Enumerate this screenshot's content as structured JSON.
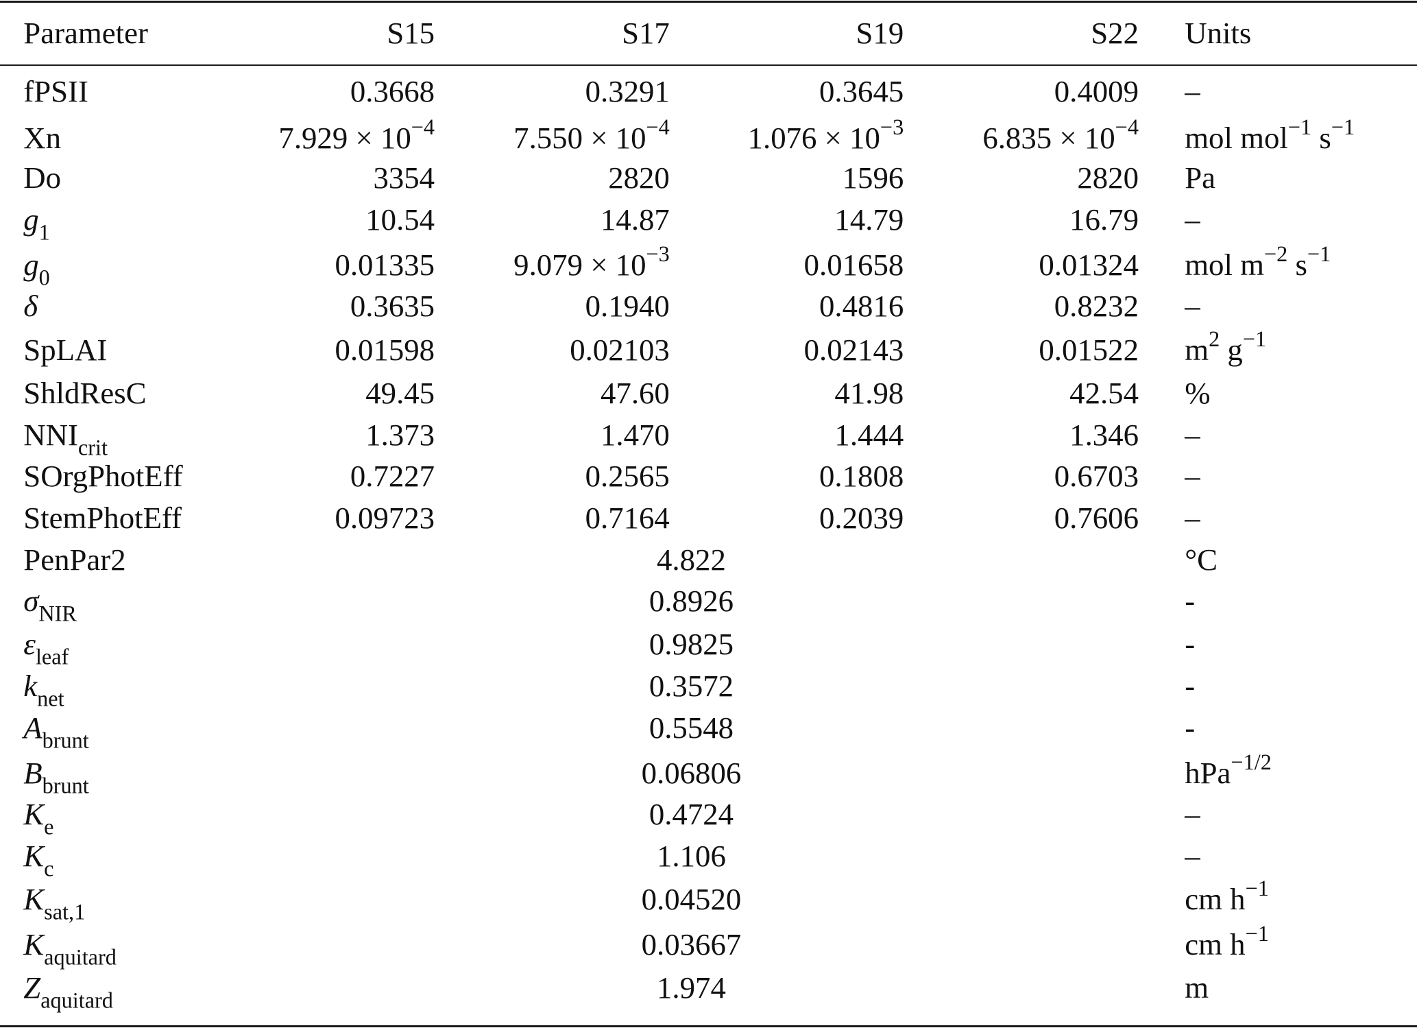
{
  "table": {
    "header": {
      "parameter": "Parameter",
      "s15": "S15",
      "s17": "S17",
      "s19": "S19",
      "s22": "S22",
      "units": "Units"
    },
    "rows": [
      {
        "param": "fPSII",
        "s15": "0.3668",
        "s17": "0.3291",
        "s19": "0.3645",
        "s22": "0.4009",
        "units": "–"
      },
      {
        "param": "Xn",
        "s15_mant": "7.929 × 10",
        "s15_exp": "−4",
        "s17_mant": "7.550 × 10",
        "s17_exp": "−4",
        "s19_mant": "1.076 × 10",
        "s19_exp": "−3",
        "s22_mant": "6.835 × 10",
        "s22_exp": "−4",
        "units_a": "mol mol",
        "units_a_exp": "−1",
        "units_b": " s",
        "units_b_exp": "−1"
      },
      {
        "param": "Do",
        "s15": "3354",
        "s17": "2820",
        "s19": "1596",
        "s22": "2820",
        "units": "Pa"
      },
      {
        "param_base": "g",
        "param_sub": "1",
        "s15": "10.54",
        "s17": "14.87",
        "s19": "14.79",
        "s22": "16.79",
        "units": "–"
      },
      {
        "param_base": "g",
        "param_sub": "0",
        "s15": "0.01335",
        "s17_mant": "9.079 × 10",
        "s17_exp": "−3",
        "s19": "0.01658",
        "s22": "0.01324",
        "units_a": "mol m",
        "units_a_exp": "−2",
        "units_b": " s",
        "units_b_exp": "−1"
      },
      {
        "param": "δ",
        "s15": "0.3635",
        "s17": "0.1940",
        "s19": "0.4816",
        "s22": "0.8232",
        "units": "–"
      },
      {
        "param": "SpLAI",
        "s15": "0.01598",
        "s17": "0.02103",
        "s19": "0.02143",
        "s22": "0.01522",
        "units_a": "m",
        "units_a_exp": "2",
        "units_b": " g",
        "units_b_exp": "−1"
      },
      {
        "param": "ShldResC",
        "s15": "49.45",
        "s17": "47.60",
        "s19": "41.98",
        "s22": "42.54",
        "units": "%"
      },
      {
        "param_base": "NNI",
        "param_sub": "crit",
        "s15": "1.373",
        "s17": "1.470",
        "s19": "1.444",
        "s22": "1.346",
        "units": "–"
      },
      {
        "param": "SOrgPhotEff",
        "s15": "0.7227",
        "s17": "0.2565",
        "s19": "0.1808",
        "s22": "0.6703",
        "units": "–"
      },
      {
        "param": "StemPhotEff",
        "s15": "0.09723",
        "s17": "0.7164",
        "s19": "0.2039",
        "s22": "0.7606",
        "units": "–"
      },
      {
        "param": "PenPar2",
        "value": "4.822",
        "units": "°C"
      },
      {
        "param_base": "σ",
        "param_sub": "NIR",
        "value": "0.8926",
        "units": "-"
      },
      {
        "param_base": "ε",
        "param_sub": "leaf",
        "value": "0.9825",
        "units": "-"
      },
      {
        "param_base": "k",
        "param_sub": "net",
        "value": "0.3572",
        "units": "-"
      },
      {
        "param_base": "A",
        "param_sub": "brunt",
        "value": "0.5548",
        "units": "-"
      },
      {
        "param_base": "B",
        "param_sub": "brunt",
        "value": "0.06806",
        "units_a": "hPa",
        "units_a_exp": "−1/2"
      },
      {
        "param_base": "K",
        "param_sub": "e",
        "value": "0.4724",
        "units": "–"
      },
      {
        "param_base": "K",
        "param_sub": "c",
        "value": "1.106",
        "units": "–"
      },
      {
        "param_base": "K",
        "param_sub": "sat,1",
        "value": "0.04520",
        "units_a": "cm h",
        "units_a_exp": "−1"
      },
      {
        "param_base": "K",
        "param_sub": "aquitard",
        "value": "0.03667",
        "units_a": "cm h",
        "units_a_exp": "−1"
      },
      {
        "param_base": "Z",
        "param_sub": "aquitard",
        "value": "1.974",
        "units": "m"
      }
    ]
  }
}
